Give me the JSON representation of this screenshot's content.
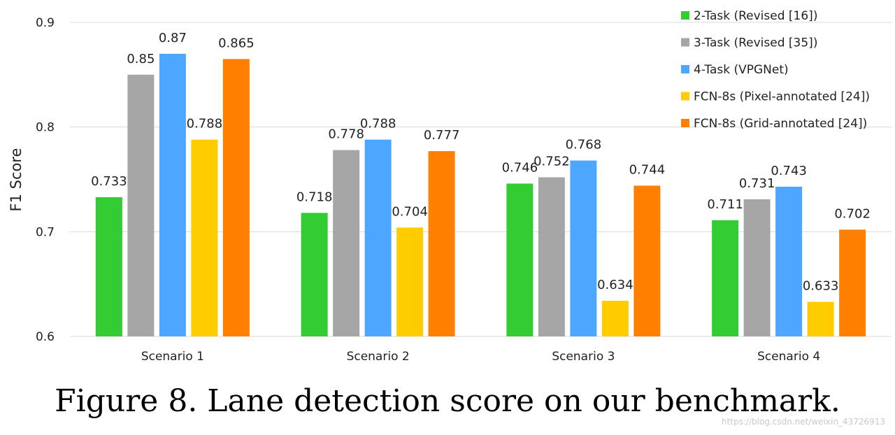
{
  "chart_data": {
    "type": "bar",
    "title": "",
    "xlabel": "",
    "ylabel": "F1 Score",
    "ylim": [
      0.6,
      0.9
    ],
    "yticks": [
      "0.6",
      "0.7",
      "0.8",
      "0.9"
    ],
    "grid": true,
    "legend_position": "top-right",
    "categories": [
      "Scenario 1",
      "Scenario 2",
      "Scenario 3",
      "Scenario 4"
    ],
    "series": [
      {
        "name": "2-Task (Revised [16])",
        "color": "#33cc33",
        "values": [
          0.733,
          0.718,
          0.746,
          0.711
        ],
        "labels": [
          "0.733",
          "0.718",
          "0.746",
          "0.711"
        ]
      },
      {
        "name": "3-Task (Revised [35])",
        "color": "#a6a6a6",
        "values": [
          0.85,
          0.778,
          0.752,
          0.731
        ],
        "labels": [
          "0.85",
          "0.778",
          "0.752",
          "0.731"
        ]
      },
      {
        "name": "4-Task (VPGNet)",
        "color": "#4da6ff",
        "values": [
          0.87,
          0.788,
          0.768,
          0.743
        ],
        "labels": [
          "0.87",
          "0.788",
          "0.768",
          "0.743"
        ]
      },
      {
        "name": "FCN-8s (Pixel-annotated [24])",
        "color": "#ffcc00",
        "values": [
          0.788,
          0.704,
          0.634,
          0.633
        ],
        "labels": [
          "0.788",
          "0.704",
          "0.634",
          "0.633"
        ]
      },
      {
        "name": "FCN-8s (Grid-annotated [24])",
        "color": "#ff8000",
        "values": [
          0.865,
          0.777,
          0.744,
          0.702
        ],
        "labels": [
          "0.865",
          "0.777",
          "0.744",
          "0.702"
        ]
      }
    ]
  },
  "caption": "Figure 8. Lane detection score on our benchmark.",
  "watermark": "https://blog.csdn.net/weixin_43726913"
}
